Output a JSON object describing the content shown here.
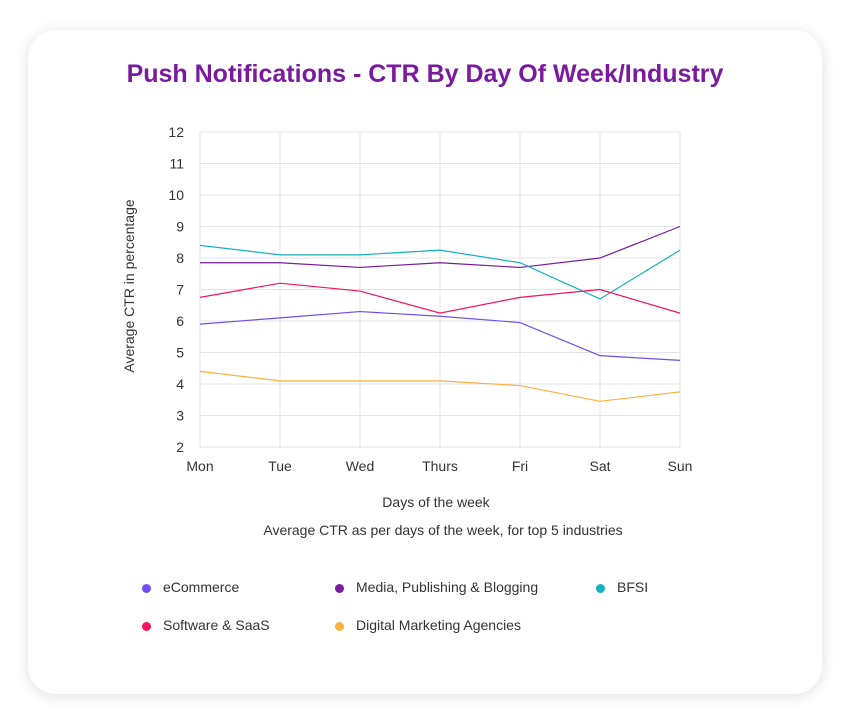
{
  "chart_data": {
    "type": "line",
    "title": "Push Notifications - CTR By Day Of Week/Industry",
    "xlabel": "Days of the week",
    "ylabel": "Average CTR in percentage",
    "caption": "Average CTR as per days of the week, for top 5 industries",
    "categories": [
      "Mon",
      "Tue",
      "Wed",
      "Thurs",
      "Fri",
      "Sat",
      "Sun"
    ],
    "ylim": [
      2,
      12
    ],
    "yticks": [
      "2",
      "3",
      "4",
      "5",
      "6",
      "7",
      "8",
      "9",
      "10",
      "11",
      "12"
    ],
    "grid": true,
    "legend_position": "bottom",
    "series": [
      {
        "name": "eCommerce",
        "color": "#6f4ef2",
        "values": [
          5.9,
          6.1,
          6.3,
          6.15,
          5.95,
          4.9,
          4.75
        ]
      },
      {
        "name": "Media, Publishing & Blogging",
        "color": "#7a1a9e",
        "values": [
          7.85,
          7.85,
          7.7,
          7.85,
          7.7,
          8.0,
          9.0
        ]
      },
      {
        "name": "BFSI",
        "color": "#14b1c0",
        "values": [
          8.4,
          8.1,
          8.1,
          8.25,
          7.85,
          6.7,
          8.25
        ]
      },
      {
        "name": "Software & SaaS",
        "color": "#f5145c",
        "values": [
          6.75,
          7.2,
          6.95,
          6.25,
          6.75,
          7.0,
          6.25
        ]
      },
      {
        "name": "Digital Marketing Agencies",
        "color": "#fbb040",
        "values": [
          4.4,
          4.1,
          4.1,
          4.1,
          3.95,
          3.45,
          3.75
        ]
      }
    ]
  }
}
